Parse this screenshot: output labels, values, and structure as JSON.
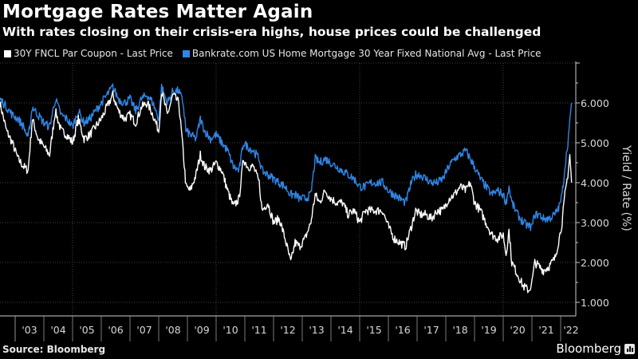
{
  "title": "Mortgage Rates Matter Again",
  "subtitle": "With rates closing on their crisis-era highs, house prices could be challenged",
  "source": "Source: Bloomberg",
  "brand": "Bloomberg",
  "colors": {
    "series_white": "#ffffff",
    "series_blue": "#2f86e6",
    "background": "#000000",
    "axis": "#cccccc",
    "grid": "#555555"
  },
  "chart_data": {
    "type": "line",
    "title": "Mortgage Rates Matter Again",
    "subtitle": "With rates closing on their crisis-era highs, house prices could be challenged",
    "xlabel": "",
    "ylabel": "Yield / Rate (%)",
    "ylim": [
      0.66,
      7.0
    ],
    "xlim": [
      2002.47,
      2022.4
    ],
    "y_ticks": [
      "1.000",
      "2.000",
      "3.000",
      "4.000",
      "5.000",
      "6.000"
    ],
    "y_tick_values": [
      1,
      2,
      3,
      4,
      5,
      6
    ],
    "x_ticks": [
      "'03",
      "'04",
      "'05",
      "'06",
      "'07",
      "'08",
      "'09",
      "'10",
      "'11",
      "'12",
      "'13",
      "'14",
      "'15",
      "'16",
      "'17",
      "'18",
      "'19",
      "'20",
      "'21",
      "'22"
    ],
    "x_tick_years": [
      2003,
      2004,
      2005,
      2006,
      2007,
      2008,
      2009,
      2010,
      2011,
      2012,
      2013,
      2014,
      2015,
      2016,
      2017,
      2018,
      2019,
      2020,
      2021,
      2022
    ],
    "grid": true,
    "legend_position": "top-left",
    "series": [
      {
        "name": "30Y FNCL Par Coupon - Last Price",
        "color": "#ffffff",
        "x": [
          2002.47,
          2002.7,
          2002.9,
          2003.1,
          2003.3,
          2003.45,
          2003.6,
          2003.8,
          2004.0,
          2004.2,
          2004.4,
          2004.6,
          2004.8,
          2005.0,
          2005.2,
          2005.4,
          2005.6,
          2005.8,
          2006.0,
          2006.2,
          2006.4,
          2006.6,
          2006.8,
          2007.0,
          2007.2,
          2007.4,
          2007.6,
          2007.8,
          2008.0,
          2008.1,
          2008.3,
          2008.5,
          2008.7,
          2008.85,
          2008.95,
          2009.1,
          2009.3,
          2009.45,
          2009.6,
          2009.8,
          2010.0,
          2010.2,
          2010.4,
          2010.6,
          2010.8,
          2010.95,
          2011.1,
          2011.3,
          2011.5,
          2011.6,
          2011.8,
          2012.0,
          2012.2,
          2012.4,
          2012.6,
          2012.75,
          2012.9,
          2013.1,
          2013.3,
          2013.45,
          2013.6,
          2013.8,
          2014.0,
          2014.2,
          2014.4,
          2014.6,
          2014.8,
          2015.0,
          2015.2,
          2015.4,
          2015.6,
          2015.8,
          2016.0,
          2016.2,
          2016.4,
          2016.6,
          2016.8,
          2016.95,
          2017.1,
          2017.3,
          2017.5,
          2017.7,
          2017.9,
          2018.1,
          2018.3,
          2018.5,
          2018.7,
          2018.85,
          2019.0,
          2019.2,
          2019.4,
          2019.6,
          2019.8,
          2020.0,
          2020.1,
          2020.2,
          2020.3,
          2020.5,
          2020.7,
          2020.9,
          2021.0,
          2021.1,
          2021.25,
          2021.4,
          2021.6,
          2021.8,
          2021.95,
          2022.05,
          2022.15,
          2022.25,
          2022.32,
          2022.38
        ],
        "values": [
          6.0,
          5.3,
          5.0,
          4.6,
          4.4,
          4.3,
          5.6,
          5.1,
          4.9,
          4.7,
          5.8,
          5.3,
          5.2,
          5.0,
          5.6,
          5.1,
          5.2,
          5.4,
          5.6,
          5.9,
          6.2,
          5.8,
          5.6,
          5.7,
          5.5,
          5.9,
          6.0,
          5.7,
          5.3,
          6.3,
          5.7,
          6.2,
          6.0,
          4.8,
          3.9,
          3.8,
          4.2,
          4.7,
          4.4,
          4.3,
          4.5,
          4.3,
          3.8,
          3.4,
          3.6,
          4.6,
          4.4,
          4.4,
          4.0,
          3.3,
          3.5,
          3.0,
          3.1,
          2.6,
          2.0,
          2.5,
          2.4,
          2.6,
          3.0,
          3.7,
          3.5,
          3.8,
          3.6,
          3.5,
          3.5,
          3.2,
          3.3,
          3.0,
          3.3,
          3.3,
          3.3,
          3.3,
          2.9,
          2.6,
          2.5,
          2.4,
          2.9,
          3.3,
          3.2,
          3.2,
          3.1,
          3.3,
          3.3,
          3.6,
          3.7,
          3.9,
          3.8,
          4.0,
          3.5,
          3.3,
          3.0,
          2.7,
          2.6,
          2.7,
          2.2,
          2.8,
          2.0,
          1.7,
          1.4,
          1.3,
          1.5,
          2.0,
          1.9,
          1.8,
          1.9,
          2.1,
          2.6,
          3.0,
          3.7,
          4.2,
          4.7,
          4.0
        ]
      },
      {
        "name": "Bankrate.com US Home Mortgage 30 Year Fixed National Avg - Last Price",
        "color": "#2f86e6",
        "x": [
          2002.47,
          2002.7,
          2002.9,
          2003.1,
          2003.3,
          2003.45,
          2003.6,
          2003.8,
          2004.0,
          2004.2,
          2004.4,
          2004.6,
          2004.8,
          2005.0,
          2005.2,
          2005.4,
          2005.6,
          2005.8,
          2006.0,
          2006.2,
          2006.4,
          2006.6,
          2006.8,
          2007.0,
          2007.2,
          2007.4,
          2007.6,
          2007.8,
          2008.0,
          2008.1,
          2008.3,
          2008.5,
          2008.7,
          2008.85,
          2008.95,
          2009.1,
          2009.3,
          2009.45,
          2009.6,
          2009.8,
          2010.0,
          2010.2,
          2010.4,
          2010.6,
          2010.8,
          2010.95,
          2011.1,
          2011.3,
          2011.5,
          2011.6,
          2011.8,
          2012.0,
          2012.2,
          2012.4,
          2012.6,
          2012.75,
          2012.9,
          2013.1,
          2013.3,
          2013.45,
          2013.6,
          2013.8,
          2014.0,
          2014.2,
          2014.4,
          2014.6,
          2014.8,
          2015.0,
          2015.2,
          2015.4,
          2015.6,
          2015.8,
          2016.0,
          2016.2,
          2016.4,
          2016.6,
          2016.8,
          2016.95,
          2017.1,
          2017.3,
          2017.5,
          2017.7,
          2017.9,
          2018.1,
          2018.3,
          2018.5,
          2018.7,
          2018.85,
          2019.0,
          2019.2,
          2019.4,
          2019.6,
          2019.8,
          2020.0,
          2020.1,
          2020.2,
          2020.3,
          2020.5,
          2020.7,
          2020.9,
          2021.0,
          2021.1,
          2021.25,
          2021.4,
          2021.6,
          2021.8,
          2021.95,
          2022.05,
          2022.15,
          2022.25,
          2022.32,
          2022.38
        ],
        "values": [
          6.1,
          5.9,
          5.7,
          5.6,
          5.4,
          5.1,
          5.9,
          5.7,
          5.5,
          5.4,
          6.1,
          5.7,
          5.6,
          5.4,
          5.8,
          5.5,
          5.6,
          5.8,
          6.0,
          6.2,
          6.4,
          6.1,
          6.0,
          6.1,
          5.8,
          6.1,
          6.2,
          6.0,
          5.6,
          6.4,
          6.0,
          6.3,
          6.3,
          6.0,
          5.3,
          5.2,
          5.1,
          5.6,
          5.3,
          5.1,
          5.2,
          5.0,
          4.8,
          4.4,
          4.3,
          5.0,
          4.9,
          4.8,
          4.6,
          4.3,
          4.2,
          4.1,
          4.0,
          3.9,
          3.7,
          3.7,
          3.6,
          3.6,
          3.7,
          4.6,
          4.5,
          4.6,
          4.5,
          4.4,
          4.3,
          4.2,
          4.1,
          3.9,
          3.9,
          4.0,
          4.0,
          4.0,
          3.8,
          3.7,
          3.6,
          3.5,
          4.0,
          4.2,
          4.2,
          4.1,
          4.0,
          4.0,
          4.1,
          4.4,
          4.6,
          4.7,
          4.8,
          4.6,
          4.4,
          4.1,
          3.9,
          3.7,
          3.8,
          3.7,
          3.5,
          3.9,
          3.5,
          3.2,
          3.0,
          2.9,
          2.9,
          3.2,
          3.2,
          3.1,
          3.1,
          3.2,
          3.4,
          3.7,
          4.4,
          5.0,
          5.5,
          6.0
        ]
      }
    ]
  }
}
